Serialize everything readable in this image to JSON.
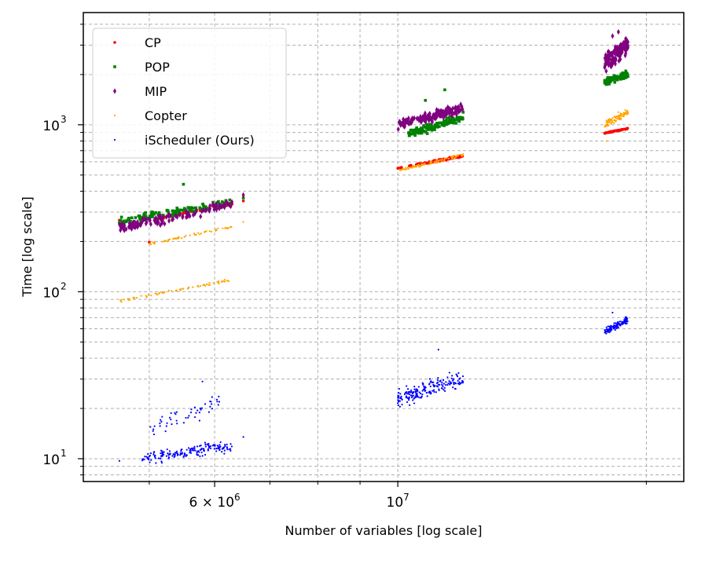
{
  "chart_data": {
    "type": "scatter",
    "title": "",
    "xlabel": "Number of variables [log scale]",
    "ylabel": "Time [log scale]",
    "xscale": "log",
    "yscale": "log",
    "xlim": [
      4160000,
      22200000
    ],
    "ylim": [
      7.3,
      4700
    ],
    "grid": true,
    "legend_position": "top-left",
    "x_major_ticks": [
      {
        "value": 6000000,
        "base": "6",
        "mult": "×",
        "exp_base": "10",
        "exp": "6"
      },
      {
        "value": 10000000,
        "base": "",
        "mult": "",
        "exp_base": "10",
        "exp": "7"
      }
    ],
    "x_minor_ticks": [
      5000000,
      7000000,
      8000000,
      9000000,
      20000000
    ],
    "y_major_ticks": [
      {
        "value": 10,
        "base": "10",
        "exp": "1"
      },
      {
        "value": 100,
        "base": "10",
        "exp": "2"
      },
      {
        "value": 1000,
        "base": "10",
        "exp": "3"
      }
    ],
    "y_minor_ticks": [
      8,
      9,
      20,
      30,
      40,
      50,
      60,
      70,
      80,
      90,
      200,
      300,
      400,
      500,
      600,
      700,
      800,
      900,
      2000,
      3000,
      4000
    ],
    "series": [
      {
        "name": "CP",
        "color": "#ff0000",
        "marker": "circle",
        "clusters": [
          {
            "x_range": [
              5100000,
              6300000
            ],
            "y_range": [
              272,
              340
            ],
            "count": 70,
            "y_spread": 0.012
          },
          {
            "x_range": [
              10000000,
              12000000
            ],
            "y_range": [
              550,
              650
            ],
            "count": 80,
            "y_spread": 0.008
          },
          {
            "x_range": [
              17800000,
              19000000
            ],
            "y_range": [
              890,
              950
            ],
            "count": 55,
            "y_spread": 0.004
          }
        ],
        "points": [
          [
            4600000,
            268
          ],
          [
            5000000,
            198
          ],
          [
            6500000,
            350
          ]
        ]
      },
      {
        "name": "POP",
        "color": "#008000",
        "marker": "square",
        "clusters": [
          {
            "x_range": [
              4600000,
              6300000
            ],
            "y_range": [
              265,
              345
            ],
            "count": 120,
            "y_spread": 0.035
          },
          {
            "x_range": [
              10300000,
              12000000
            ],
            "y_range": [
              880,
              1110
            ],
            "count": 140,
            "y_spread": 0.035
          },
          {
            "x_range": [
              17800000,
              19000000
            ],
            "y_range": [
              1800,
              2010
            ],
            "count": 90,
            "y_spread": 0.03
          }
        ],
        "points": [
          [
            4600000,
            258
          ],
          [
            5500000,
            440
          ],
          [
            6500000,
            365
          ],
          [
            11400000,
            1620
          ],
          [
            10800000,
            1400
          ]
        ]
      },
      {
        "name": "MIP",
        "color": "#800080",
        "marker": "diamond",
        "clusters": [
          {
            "x_range": [
              4600000,
              6300000
            ],
            "y_range": [
              240,
              335
            ],
            "count": 120,
            "y_spread": 0.04
          },
          {
            "x_range": [
              10000000,
              12000000
            ],
            "y_range": [
              1000,
              1260
            ],
            "count": 140,
            "y_spread": 0.04
          },
          {
            "x_range": [
              17800000,
              19000000
            ],
            "y_range": [
              2350,
              3000
            ],
            "count": 120,
            "y_spread": 0.08
          }
        ],
        "points": [
          [
            6500000,
            380
          ],
          [
            18500000,
            3600
          ],
          [
            18200000,
            3400
          ]
        ]
      },
      {
        "name": "Copter",
        "color": "#ffa500",
        "marker": "point",
        "clusters": [
          {
            "x_range": [
              5000000,
              6300000
            ],
            "y_range": [
              193,
              245
            ],
            "count": 60,
            "y_spread": 0.01
          },
          {
            "x_range": [
              4600000,
              6300000
            ],
            "y_range": [
              88,
              118
            ],
            "count": 70,
            "y_spread": 0.012
          },
          {
            "x_range": [
              10000000,
              12000000
            ],
            "y_range": [
              530,
              660
            ],
            "count": 90,
            "y_spread": 0.012
          },
          {
            "x_range": [
              17800000,
              19000000
            ],
            "y_range": [
              1000,
              1200
            ],
            "count": 90,
            "y_spread": 0.035
          }
        ],
        "points": [
          [
            6500000,
            262
          ],
          [
            17900000,
            800
          ]
        ]
      },
      {
        "name": "iScheduler (Ours)",
        "color": "#0000ff",
        "marker": "point",
        "clusters": [
          {
            "x_range": [
              4900000,
              6300000
            ],
            "y_range": [
              10,
              12
            ],
            "count": 170,
            "y_spread": 0.05
          },
          {
            "x_range": [
              5000000,
              6100000
            ],
            "y_range": [
              15,
              22
            ],
            "count": 50,
            "y_spread": 0.08
          },
          {
            "x_range": [
              10000000,
              12000000
            ],
            "y_range": [
              23,
              30
            ],
            "count": 190,
            "y_spread": 0.07
          },
          {
            "x_range": [
              17800000,
              19000000
            ],
            "y_range": [
              58,
              68
            ],
            "count": 110,
            "y_spread": 0.03
          }
        ],
        "points": [
          [
            4600000,
            9.7
          ],
          [
            5800000,
            29
          ],
          [
            6500000,
            13.5
          ],
          [
            11200000,
            45
          ],
          [
            18200000,
            75
          ],
          [
            10000000,
            21.5
          ]
        ]
      }
    ]
  }
}
